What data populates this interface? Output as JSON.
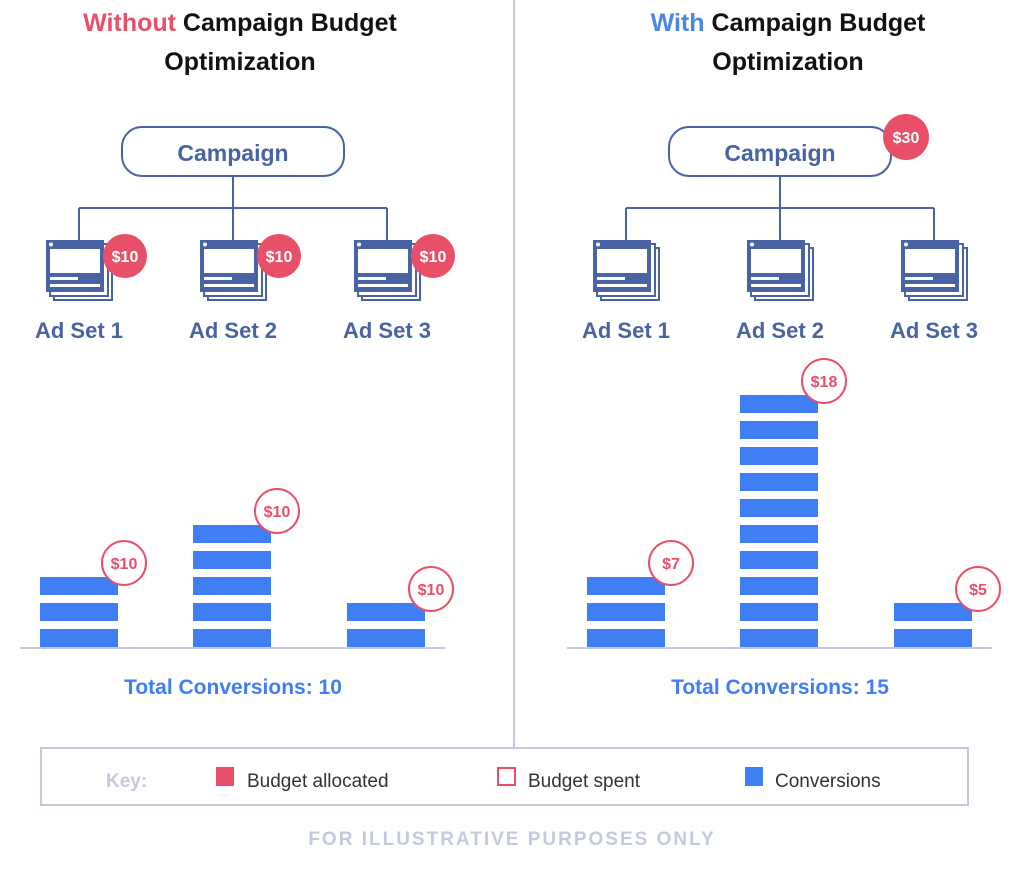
{
  "colors": {
    "red": "#e8506a",
    "blue_accent": "#4a86e8",
    "hierarchy": "#4a63a5",
    "conversion_bar": "#3f7ef5",
    "muted": "#c3c9df"
  },
  "panels": [
    {
      "title_highlight": "Without",
      "title_rest": " Campaign Budget",
      "title_line2": "Optimization",
      "campaign_label": "Campaign",
      "campaign_budget": "",
      "ad_sets": [
        {
          "label": "Ad Set 1",
          "allocated": "$10",
          "spent": "$10",
          "conversions": 3
        },
        {
          "label": "Ad Set 2",
          "allocated": "$10",
          "spent": "$10",
          "conversions": 5
        },
        {
          "label": "Ad Set 3",
          "allocated": "$10",
          "spent": "$10",
          "conversions": 2
        }
      ],
      "total": "Total Conversions: 10"
    },
    {
      "title_highlight": "With",
      "title_rest": " Campaign Budget",
      "title_line2": "Optimization",
      "campaign_label": "Campaign",
      "campaign_budget": "$30",
      "ad_sets": [
        {
          "label": "Ad Set 1",
          "allocated": "",
          "spent": "$7",
          "conversions": 3
        },
        {
          "label": "Ad Set 2",
          "allocated": "",
          "spent": "$18",
          "conversions": 10
        },
        {
          "label": "Ad Set 3",
          "allocated": "",
          "spent": "$5",
          "conversions": 2
        }
      ],
      "total": "Total Conversions: 15"
    }
  ],
  "legend": {
    "key_label": "Key:",
    "items": [
      "Budget allocated",
      "Budget spent",
      "Conversions"
    ]
  },
  "footer": "FOR ILLUSTRATIVE PURPOSES ONLY"
}
